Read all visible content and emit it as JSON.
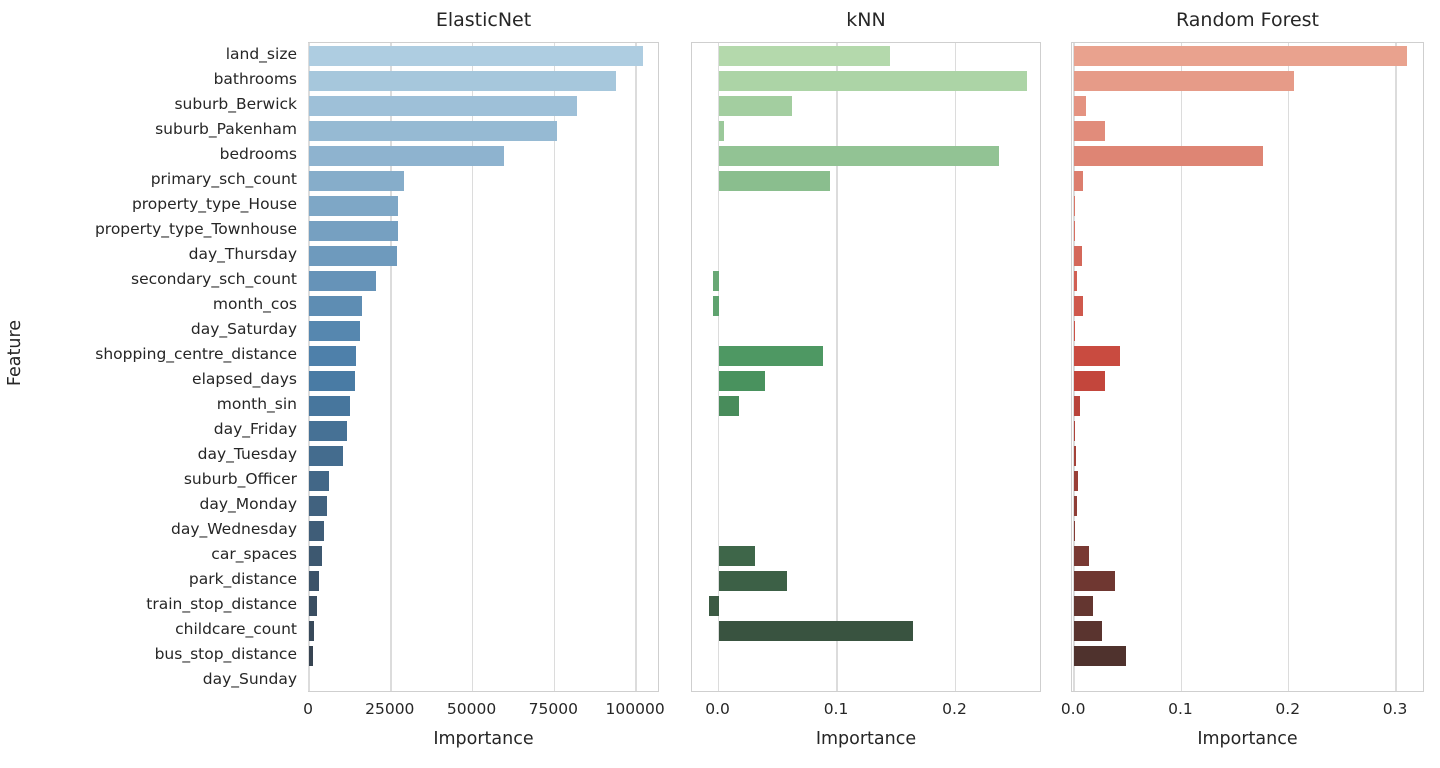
{
  "figure": {
    "background": "#ffffff",
    "text_color": "#262626",
    "grid_color": "#dcdcdc",
    "border_color": "#cfcfcf"
  },
  "chart_data": {
    "type": "bar",
    "orientation": "horizontal",
    "ylabel": "Feature",
    "grid": true,
    "legend": false,
    "categories": [
      "land_size",
      "bathrooms",
      "suburb_Berwick",
      "suburb_Pakenham",
      "bedrooms",
      "primary_sch_count",
      "property_type_House",
      "property_type_Townhouse",
      "day_Thursday",
      "secondary_sch_count",
      "month_cos",
      "day_Saturday",
      "shopping_centre_distance",
      "elapsed_days",
      "month_sin",
      "day_Friday",
      "day_Tuesday",
      "suburb_Officer",
      "day_Monday",
      "day_Wednesday",
      "car_spaces",
      "park_distance",
      "train_stop_distance",
      "childcare_count",
      "bus_stop_distance",
      "day_Sunday"
    ],
    "series": [
      {
        "name": "ElasticNet",
        "xlabel": "Importance",
        "xlim": [
          0,
          107300
        ],
        "xticks": [
          0,
          25000,
          50000,
          75000,
          100000
        ],
        "xtick_labels": [
          "0",
          "25000",
          "50000",
          "75000",
          "100000"
        ],
        "palette": [
          "#aecde1",
          "#4a7da8",
          "#353f4b"
        ],
        "values": [
          102000,
          94000,
          81800,
          75700,
          59500,
          28900,
          27200,
          27300,
          27000,
          20400,
          16300,
          15500,
          14500,
          14100,
          12500,
          11500,
          10500,
          6200,
          5600,
          4500,
          4000,
          3100,
          2400,
          1500,
          1200,
          0
        ]
      },
      {
        "name": "kNN",
        "xlabel": "Importance",
        "xlim": [
          -0.0224,
          0.273
        ],
        "xticks": [
          0,
          0.1,
          0.2
        ],
        "xtick_labels": [
          "0.0",
          "0.1",
          "0.2"
        ],
        "palette": [
          "#b4d9ac",
          "#4a9560",
          "#36473a"
        ],
        "values": [
          0.145,
          0.26,
          0.062,
          0.005,
          0.237,
          0.094,
          0,
          0,
          0,
          -0.005,
          -0.005,
          0,
          0.088,
          0.039,
          0.017,
          0,
          0,
          0,
          0,
          0,
          0.031,
          0.058,
          -0.008,
          0.164,
          0,
          0
        ]
      },
      {
        "name": "Random Forest",
        "xlabel": "Importance",
        "xlim": [
          -0.002,
          0.327
        ],
        "xticks": [
          0,
          0.1,
          0.2,
          0.3
        ],
        "xtick_labels": [
          "0.0",
          "0.1",
          "0.2",
          "0.3"
        ],
        "palette": [
          "#e9a28e",
          "#c8473d",
          "#45302c"
        ],
        "values": [
          0.31,
          0.205,
          0.0115,
          0.0285,
          0.176,
          0.008,
          0.0008,
          0.0005,
          0.0075,
          0.003,
          0.0078,
          0.0005,
          0.043,
          0.0285,
          0.0055,
          0.001,
          0.0015,
          0.004,
          0.0028,
          0.0008,
          0.014,
          0.038,
          0.018,
          0.0255,
          0.0485,
          0
        ]
      }
    ]
  }
}
